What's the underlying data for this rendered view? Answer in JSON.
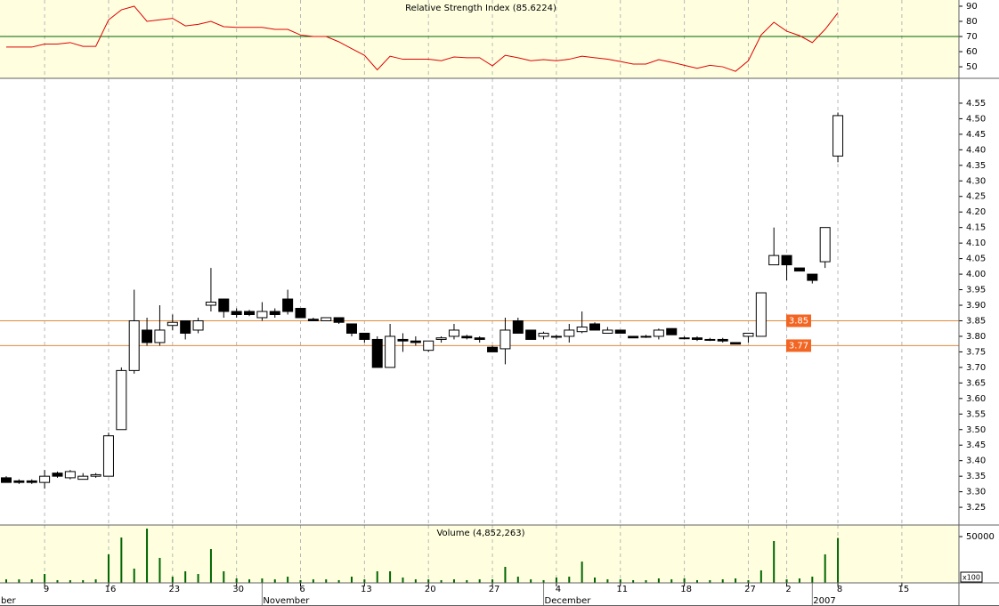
{
  "x_axis": {
    "categories": [
      null,
      null,
      null,
      "9",
      null,
      null,
      null,
      null,
      "16",
      null,
      null,
      null,
      null,
      "23",
      null,
      null,
      null,
      null,
      "30",
      null,
      null,
      null,
      null,
      "6",
      null,
      null,
      null,
      null,
      "13",
      null,
      null,
      null,
      null,
      "20",
      null,
      null,
      null,
      null,
      "27",
      null,
      null,
      null,
      null,
      "4",
      null,
      null,
      null,
      null,
      "11",
      null,
      null,
      null,
      null,
      "18",
      null,
      null,
      null,
      null,
      "27",
      null,
      null,
      "2",
      null,
      null,
      null,
      "8",
      null,
      null,
      null,
      null,
      "15"
    ],
    "months": [
      "ber",
      null,
      null,
      null,
      null,
      null,
      null,
      null,
      null,
      null,
      null,
      null,
      null,
      null,
      null,
      null,
      null,
      null,
      null,
      null,
      "November",
      null,
      null,
      null,
      null,
      null,
      null,
      null,
      null,
      null,
      null,
      null,
      null,
      null,
      null,
      null,
      null,
      null,
      null,
      null,
      null,
      null,
      "December",
      null,
      null,
      null,
      null,
      null,
      null,
      null,
      null,
      null,
      null,
      null,
      null,
      null,
      null,
      null,
      null,
      null,
      null,
      null,
      null,
      "2007",
      null,
      null,
      null,
      null,
      null,
      null,
      null,
      null,
      null
    ]
  },
  "chart_data": [
    {
      "type": "line",
      "title": "Relative Strength Index (85.6224)",
      "series": [
        {
          "color": "#e00000",
          "values": [
            63,
            63,
            63,
            65,
            65,
            66,
            63.5,
            63.5,
            81,
            87.6,
            90,
            80,
            81,
            82,
            77,
            78,
            80,
            76.5,
            76,
            76,
            76,
            74.7,
            74.7,
            71,
            70,
            70,
            66.5,
            62,
            57.6,
            48,
            57,
            55,
            55,
            55,
            54,
            56.5,
            56,
            56,
            50.6,
            57.6,
            56,
            54,
            54.7,
            54,
            55,
            57,
            56,
            55,
            53.5,
            51.8,
            51.8,
            54.7,
            53,
            51,
            49,
            51,
            50,
            47,
            54,
            71,
            79.4,
            73.5,
            70.6,
            66,
            74.7,
            85.6,
            null,
            null,
            null,
            null,
            null
          ]
        }
      ],
      "ylim": [
        42.4,
        94.1
      ],
      "yticks": [
        90,
        80,
        70,
        60,
        50
      ],
      "hlines": [
        {
          "value": 70,
          "color": "#006000"
        }
      ],
      "background": "#ffffe0"
    },
    {
      "type": "candlestick",
      "open": [
        3.345,
        3.335,
        3.335,
        3.33,
        3.36,
        3.345,
        3.34,
        3.35,
        3.35,
        3.5,
        3.69,
        3.82,
        3.78,
        3.835,
        3.85,
        3.82,
        3.9,
        3.92,
        3.88,
        3.88,
        3.86,
        3.88,
        3.92,
        3.89,
        3.855,
        3.85,
        3.86,
        3.84,
        3.81,
        3.79,
        3.7,
        3.79,
        3.785,
        3.755,
        3.79,
        3.8,
        3.8,
        3.795,
        3.765,
        3.76,
        3.85,
        3.82,
        3.8,
        3.8,
        3.8,
        3.815,
        3.84,
        3.81,
        3.82,
        3.8,
        3.8,
        3.8,
        3.825,
        3.795,
        3.795,
        3.79,
        3.79,
        3.78,
        3.8,
        3.8,
        4.03,
        4.06,
        4.02,
        4.0,
        4.04,
        4.38,
        null,
        null,
        null,
        null,
        null
      ],
      "high": [
        3.35,
        3.34,
        3.34,
        3.37,
        3.365,
        3.37,
        3.36,
        3.36,
        3.49,
        3.7,
        3.95,
        3.86,
        3.9,
        3.87,
        3.85,
        3.86,
        4.02,
        3.92,
        3.89,
        3.885,
        3.91,
        3.89,
        3.95,
        3.89,
        3.86,
        3.86,
        3.86,
        3.84,
        3.81,
        3.8,
        3.84,
        3.81,
        3.8,
        3.785,
        3.8,
        3.84,
        3.805,
        3.8,
        3.77,
        3.86,
        3.86,
        3.82,
        3.815,
        3.805,
        3.84,
        3.88,
        3.845,
        3.83,
        3.82,
        3.8,
        3.805,
        3.825,
        3.825,
        3.8,
        3.8,
        3.795,
        3.795,
        3.78,
        3.81,
        3.94,
        4.15,
        4.06,
        4.02,
        4.0,
        4.15,
        4.52,
        null,
        null,
        null,
        null,
        null
      ],
      "low": [
        3.33,
        3.325,
        3.325,
        3.31,
        3.345,
        3.34,
        3.34,
        3.345,
        3.35,
        3.5,
        3.68,
        3.77,
        3.77,
        3.82,
        3.79,
        3.81,
        3.88,
        3.86,
        3.86,
        3.865,
        3.85,
        3.86,
        3.87,
        3.86,
        3.85,
        3.85,
        3.84,
        3.8,
        3.78,
        3.7,
        3.7,
        3.75,
        3.77,
        3.75,
        3.78,
        3.79,
        3.79,
        3.78,
        3.75,
        3.71,
        3.81,
        3.79,
        3.79,
        3.79,
        3.78,
        3.81,
        3.82,
        3.81,
        3.81,
        3.795,
        3.795,
        3.79,
        3.805,
        3.79,
        3.785,
        3.785,
        3.78,
        3.775,
        3.78,
        3.8,
        4.03,
        3.98,
        4.01,
        3.97,
        4.02,
        4.36,
        null,
        null,
        null,
        null,
        null
      ],
      "close": [
        3.33,
        3.33,
        3.33,
        3.35,
        3.35,
        3.365,
        3.35,
        3.355,
        3.48,
        3.69,
        3.85,
        3.78,
        3.82,
        3.845,
        3.81,
        3.85,
        3.91,
        3.88,
        3.87,
        3.87,
        3.88,
        3.87,
        3.88,
        3.86,
        3.85,
        3.86,
        3.845,
        3.81,
        3.79,
        3.7,
        3.8,
        3.785,
        3.78,
        3.785,
        3.795,
        3.82,
        3.795,
        3.79,
        3.75,
        3.82,
        3.81,
        3.79,
        3.81,
        3.8,
        3.82,
        3.83,
        3.82,
        3.82,
        3.81,
        3.795,
        3.8,
        3.82,
        3.805,
        3.795,
        3.79,
        3.79,
        3.785,
        3.775,
        3.81,
        3.94,
        4.06,
        4.03,
        4.01,
        3.98,
        4.15,
        4.51,
        null,
        null,
        null,
        null,
        null
      ],
      "ylim": [
        3.193,
        4.63
      ],
      "yticks": [
        {
          "value": 4.55,
          "label": "4.55"
        },
        {
          "value": 4.5,
          "label": "4.50"
        },
        {
          "value": 4.45,
          "label": "4.45"
        },
        {
          "value": 4.4,
          "label": "4.40"
        },
        {
          "value": 4.35,
          "label": "4.35"
        },
        {
          "value": 4.3,
          "label": "4.30"
        },
        {
          "value": 4.25,
          "label": "4.25"
        },
        {
          "value": 4.2,
          "label": "4.20"
        },
        {
          "value": 4.15,
          "label": "4.15"
        },
        {
          "value": 4.1,
          "label": "4.10"
        },
        {
          "value": 4.05,
          "label": "4.05"
        },
        {
          "value": 4.0,
          "label": "4.00"
        },
        {
          "value": 3.95,
          "label": "3.95"
        },
        {
          "value": 3.9,
          "label": "3.90"
        },
        {
          "value": 3.85,
          "label": "3.85"
        },
        {
          "value": 3.8,
          "label": "3.80"
        },
        {
          "value": 3.75,
          "label": "3.75"
        },
        {
          "value": 3.7,
          "label": "3.70"
        },
        {
          "value": 3.65,
          "label": "3.65"
        },
        {
          "value": 3.6,
          "label": "3.60"
        },
        {
          "value": 3.55,
          "label": "3.55"
        },
        {
          "value": 3.5,
          "label": "3.50"
        },
        {
          "value": 3.45,
          "label": "3.45"
        },
        {
          "value": 3.4,
          "label": "3.40"
        },
        {
          "value": 3.35,
          "label": "3.35"
        },
        {
          "value": 3.3,
          "label": "3.30"
        },
        {
          "value": 3.25,
          "label": "3.25"
        }
      ],
      "hlines": [
        {
          "value": 3.85,
          "label": "3.85",
          "color": "#e08a3c"
        },
        {
          "value": 3.77,
          "label": "3.77",
          "color": "#e08a3c"
        }
      ],
      "background": "#ffffff"
    },
    {
      "type": "bar",
      "title": "Volume (4,852,263)",
      "unit_label": "x100",
      "color": "#006400",
      "values": [
        3800,
        3800,
        3800,
        9600,
        2900,
        2900,
        2900,
        3800,
        30800,
        49000,
        15400,
        58600,
        27000,
        6700,
        12500,
        9600,
        36500,
        12500,
        4800,
        3800,
        4800,
        3800,
        6700,
        2900,
        3800,
        3800,
        2900,
        6700,
        3800,
        12500,
        12500,
        5800,
        3800,
        3800,
        2900,
        3800,
        2900,
        3800,
        3800,
        17300,
        6700,
        3800,
        2900,
        5800,
        6700,
        23000,
        5800,
        3800,
        3800,
        2900,
        2900,
        4800,
        3800,
        4800,
        2900,
        2900,
        3800,
        4800,
        2900,
        13500,
        45200,
        3800,
        4800,
        6700,
        30800,
        48523,
        null,
        null,
        null,
        null,
        null
      ],
      "ylim": [
        0,
        62500
      ],
      "yticks": [
        50000
      ],
      "background": "#ffffe0"
    }
  ]
}
